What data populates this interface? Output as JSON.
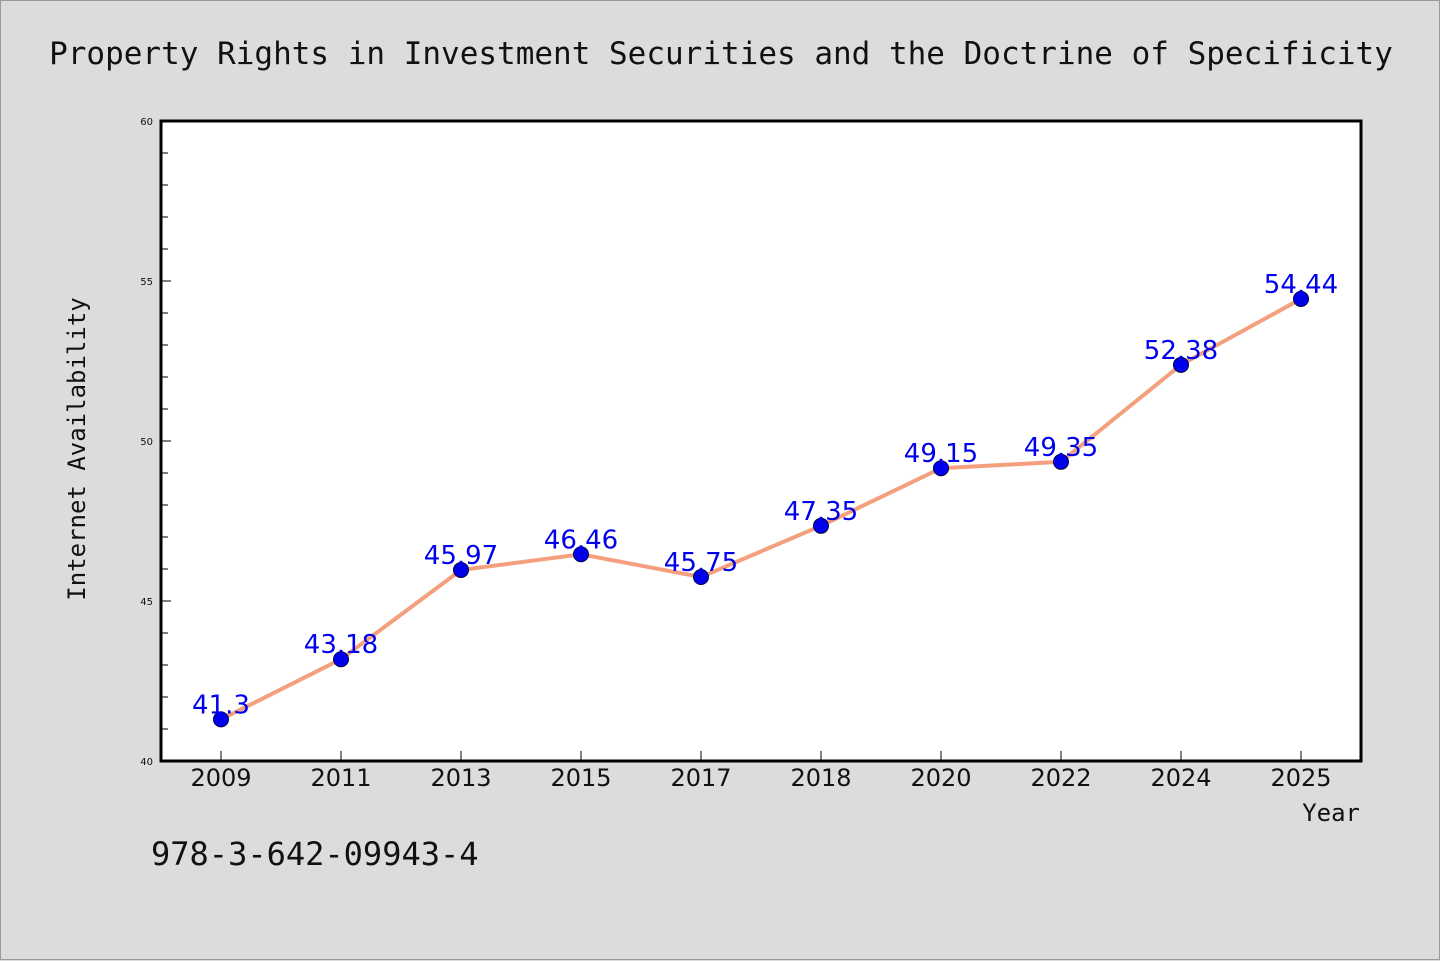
{
  "chart_data": {
    "type": "line",
    "title": "Property Rights in Investment Securities and the Doctrine of Specificity",
    "xlabel": "Year",
    "ylabel": "Internet Availability",
    "categories": [
      "2009",
      "2011",
      "2013",
      "2015",
      "2017",
      "2018",
      "2020",
      "2022",
      "2024",
      "2025"
    ],
    "series": [
      {
        "values": [
          41.3,
          43.18,
          45.97,
          46.46,
          45.75,
          47.35,
          49.15,
          49.35,
          52.38,
          54.44
        ],
        "labels": [
          "41.3",
          "43.18",
          "45.97",
          "46.46",
          "45.75",
          "47.35",
          "49.15",
          "49.35",
          "52.38",
          "54.44"
        ]
      }
    ],
    "ylim": [
      40,
      60
    ],
    "yticks": [
      40,
      45,
      50,
      55,
      60
    ],
    "grid": false,
    "colors": {
      "line": "#f4a07e",
      "marker": "#0000ee",
      "data_label": "#0000ee",
      "plot_background": "#ffffff",
      "page_background": "#dcdcdc"
    }
  },
  "footer": {
    "isbn": "978-3-642-09943-4"
  }
}
